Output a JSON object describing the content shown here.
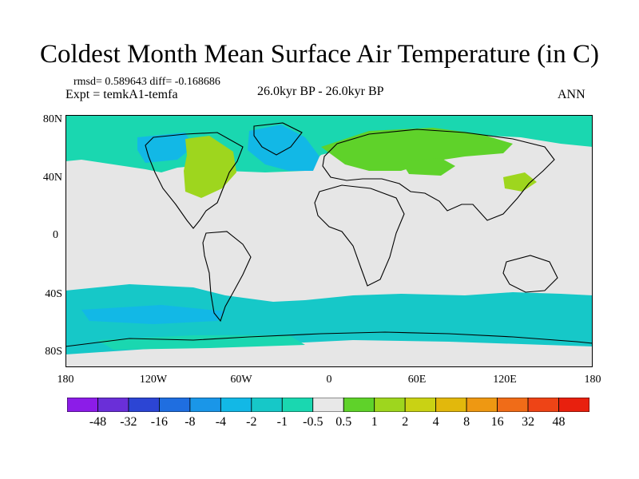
{
  "figure": {
    "title": "Coldest Month Mean Surface Air Temperature (in C)",
    "stats_text": "rmsd= 0.589643 diff= -0.168686",
    "experiment_label": "Expt = temkA1-temfa",
    "period_label": "26.0kyr BP - 26.0kyr BP",
    "season_label": "ANN"
  },
  "axes": {
    "lat_ticks": [
      "80N",
      "40N",
      "0",
      "40S",
      "80S"
    ],
    "lon_ticks": [
      "180",
      "120W",
      "60W",
      "0",
      "60E",
      "120E",
      "180"
    ]
  },
  "colorbar": {
    "labels": [
      "-48",
      "-32",
      "-16",
      "-8",
      "-4",
      "-2",
      "-1",
      "-0.5",
      "0.5",
      "1",
      "2",
      "4",
      "8",
      "16",
      "32",
      "48"
    ],
    "colors": [
      "#8c1ce8",
      "#6a2fd8",
      "#2c45d4",
      "#1f6ee0",
      "#1a96e8",
      "#12b8e6",
      "#16c8c8",
      "#1ad7b0",
      "#e8e8e8",
      "#5fd22a",
      "#9ed61e",
      "#c9d214",
      "#e2b80c",
      "#ee9812",
      "#f06c18",
      "#ee4416",
      "#e8200e"
    ]
  },
  "map_data": {
    "background_color": "#e6e6e6",
    "anomaly_regions": [
      {
        "name": "arctic-band",
        "color": "#1ad7b0"
      },
      {
        "name": "north-atlantic-cold",
        "color": "#12b8e6"
      },
      {
        "name": "north-america-warm",
        "color": "#9ed61e"
      },
      {
        "name": "eurasia-warm",
        "color": "#5fd22a"
      },
      {
        "name": "southern-ocean-cold",
        "color": "#16c8c8"
      }
    ]
  }
}
